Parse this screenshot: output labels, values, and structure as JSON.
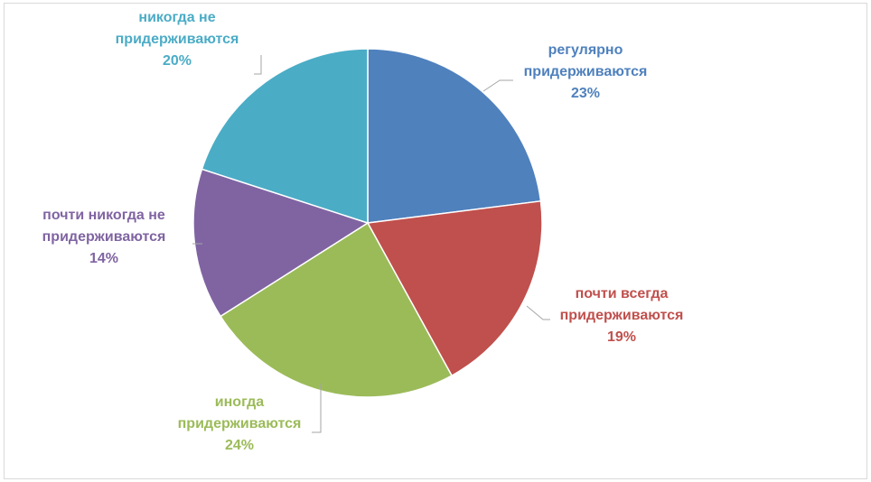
{
  "chart_data": {
    "type": "pie",
    "slices": [
      {
        "label_lines": [
          "регулярно",
          "придерживаются"
        ],
        "value": 23,
        "value_label": "23%",
        "color": "#4F81BD",
        "text_color": "#4F81BD"
      },
      {
        "label_lines": [
          "почти всегда",
          "придерживаются"
        ],
        "value": 19,
        "value_label": "19%",
        "color": "#C0504D",
        "text_color": "#C0504D"
      },
      {
        "label_lines": [
          "иногда",
          "придерживаются"
        ],
        "value": 24,
        "value_label": "24%",
        "color": "#9BBB59",
        "text_color": "#9BBB59"
      },
      {
        "label_lines": [
          "почти никогда не",
          "придерживаются"
        ],
        "value": 14,
        "value_label": "14%",
        "color": "#8064A2",
        "text_color": "#8064A2"
      },
      {
        "label_lines": [
          "никогда не",
          "придерживаются"
        ],
        "value": 20,
        "value_label": "20%",
        "color": "#4BACC6",
        "text_color": "#4BACC6"
      }
    ],
    "start_angle_deg": 0,
    "direction": "clockwise",
    "legend": "none",
    "data_labels": "outside with leader lines"
  }
}
